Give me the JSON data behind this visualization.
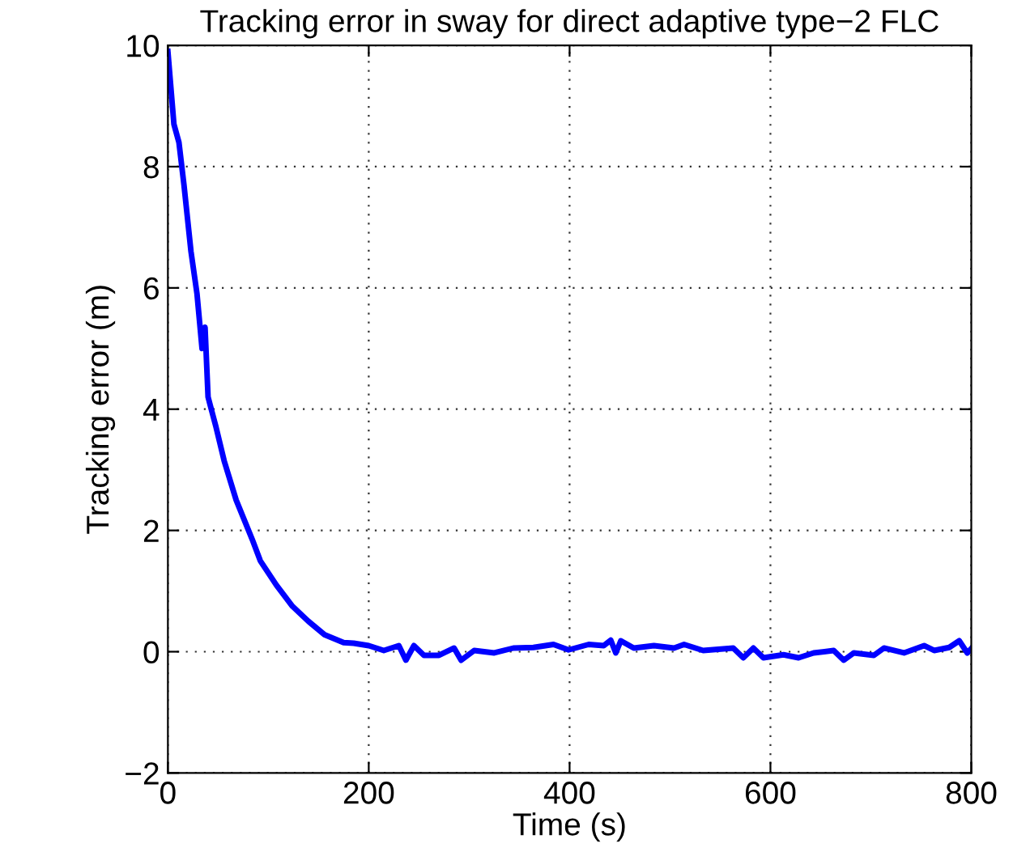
{
  "chart_data": {
    "type": "line",
    "title": "Tracking error in sway for direct adaptive type−2 FLC",
    "xlabel": "Time (s)",
    "ylabel": "Tracking error (m)",
    "xlim": [
      0,
      800
    ],
    "ylim": [
      -2,
      10
    ],
    "xticks": [
      0,
      200,
      400,
      600,
      800
    ],
    "yticks": [
      {
        "value": -2,
        "label": "−2"
      },
      0,
      2,
      4,
      6,
      8,
      10
    ],
    "grid": true,
    "line_style": "solid",
    "marker": "none",
    "series": [
      {
        "color": "#0000ff",
        "x": [
          0,
          6,
          11,
          16,
          23,
          29,
          34,
          37,
          40,
          48,
          56,
          68,
          84,
          92,
          108,
          124,
          140,
          156,
          175,
          185,
          200,
          215,
          230,
          237,
          245,
          255,
          270,
          285,
          292,
          305,
          325,
          344,
          364,
          384,
          399,
          419,
          434,
          441,
          446,
          451,
          464,
          484,
          504,
          514,
          533,
          563,
          573,
          583,
          593,
          613,
          628,
          643,
          663,
          673,
          683,
          703,
          713,
          733,
          753,
          763,
          778,
          788,
          796,
          800
        ],
        "values": [
          9.9,
          8.7,
          8.4,
          7.7,
          6.6,
          5.9,
          5.0,
          5.35,
          4.2,
          3.7,
          3.15,
          2.5,
          1.85,
          1.5,
          1.1,
          0.75,
          0.5,
          0.28,
          0.15,
          0.14,
          0.1,
          0.02,
          0.1,
          -0.14,
          0.1,
          -0.06,
          -0.06,
          0.06,
          -0.14,
          0.02,
          -0.02,
          0.06,
          0.07,
          0.12,
          0.03,
          0.12,
          0.1,
          0.19,
          -0.02,
          0.18,
          0.06,
          0.1,
          0.06,
          0.12,
          0.02,
          0.06,
          -0.1,
          0.06,
          -0.1,
          -0.05,
          -0.1,
          -0.02,
          0.02,
          -0.14,
          -0.02,
          -0.06,
          0.06,
          -0.02,
          0.1,
          0.02,
          0.07,
          0.18,
          -0.02,
          0.05
        ]
      }
    ]
  }
}
